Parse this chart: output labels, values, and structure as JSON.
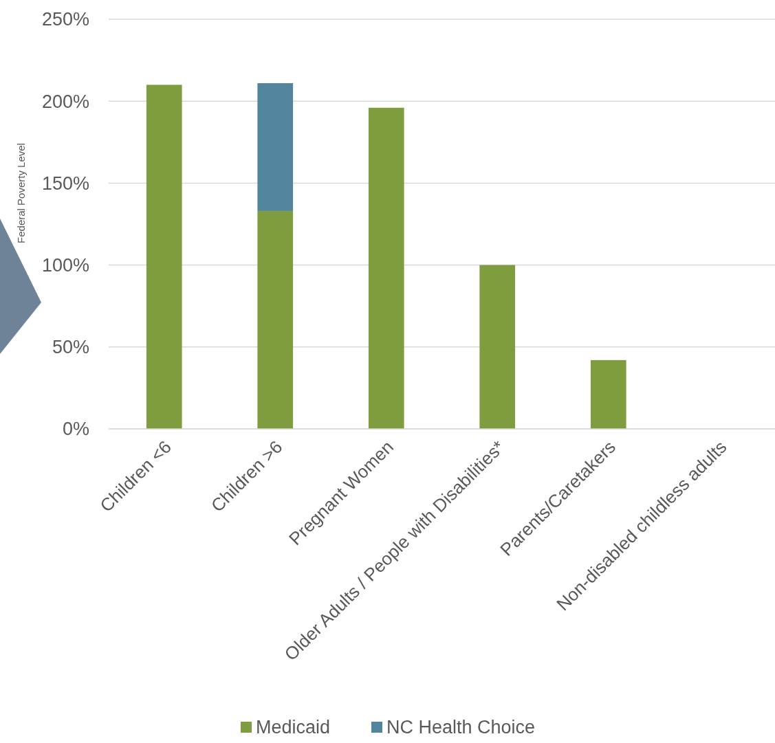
{
  "chart_data": {
    "type": "bar",
    "stacked": true,
    "ylabel": "Federal Poverty Level",
    "categories": [
      "Children <6",
      "Children >6",
      "Pregnant Women",
      "Older Adults / People with Disabilities*",
      "Parents/Caretakers",
      "Non-disabled childless adults"
    ],
    "series": [
      {
        "name": "Medicaid",
        "color": "#7f9c3f",
        "values": [
          210,
          133,
          196,
          100,
          42,
          0
        ]
      },
      {
        "name": "NC Health Choice",
        "color": "#52849b",
        "values": [
          0,
          78,
          0,
          0,
          0,
          0
        ]
      }
    ],
    "ylim": [
      0,
      250
    ],
    "yticks": [
      {
        "value": 0,
        "label": "0%"
      },
      {
        "value": 50,
        "label": "50%"
      },
      {
        "value": 100,
        "label": "100%"
      },
      {
        "value": 150,
        "label": "150%"
      },
      {
        "value": 200,
        "label": "200%"
      },
      {
        "value": 250,
        "label": "250%"
      }
    ],
    "grid": "y",
    "legend": "bottom"
  }
}
